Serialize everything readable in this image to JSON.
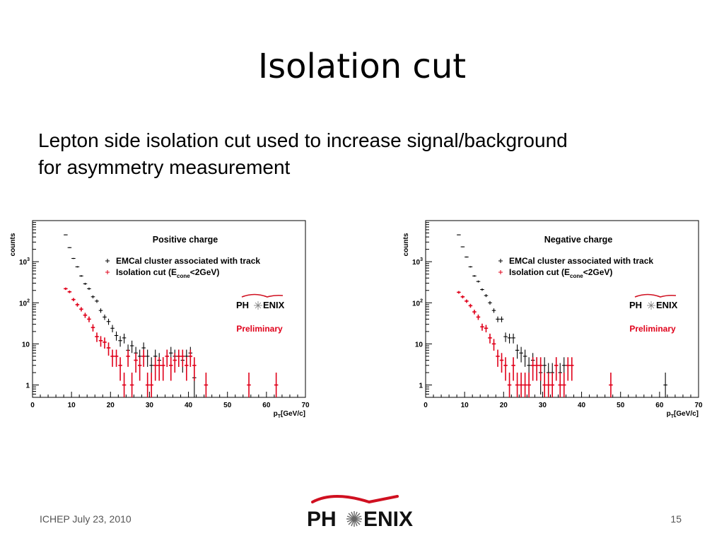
{
  "slide": {
    "title": "Isolation cut",
    "subtitle_line1": "Lepton side isolation cut used to increase signal/background",
    "subtitle_line2": "for asymmetry measurement"
  },
  "footer": {
    "conference": "ICHEP July 23, 2010",
    "page_number": "15",
    "logo_left": "PH",
    "logo_right": "ENIX"
  },
  "chart_data": [
    {
      "type": "scatter",
      "title": "Positive charge",
      "xlabel": "p",
      "xlabel_sub": "T",
      "xlabel_unit": "[GeV/c]",
      "ylabel": "counts",
      "xlim": [
        0,
        70
      ],
      "ylim": [
        0.5,
        10000
      ],
      "yscale": "log",
      "x_ticks": [
        "0",
        "10",
        "20",
        "30",
        "40",
        "50",
        "60",
        "70"
      ],
      "y_ticks": [
        {
          "value": 1,
          "base": "1",
          "exp": ""
        },
        {
          "value": 10,
          "base": "10",
          "exp": ""
        },
        {
          "value": 100,
          "base": "10",
          "exp": "2"
        },
        {
          "value": 1000,
          "base": "10",
          "exp": "3"
        }
      ],
      "legend": {
        "position": "top-right",
        "entry1": "EMCal cluster associated with track",
        "entry2_main": "Isolation cut (E",
        "entry2_sub": "cone",
        "entry2_tail": "<2GeV)"
      },
      "logo_left": "PH",
      "logo_right": "ENIX",
      "preliminary": "Preliminary",
      "colors": {
        "all": "#000000",
        "isolated": "#e0001a",
        "logo_arc": "#d01020"
      },
      "series": [
        {
          "color": "#000000",
          "x": [
            8.5,
            9.5,
            10.5,
            11.5,
            12.5,
            13.5,
            14.5,
            15.5,
            16.5,
            17.5,
            18.5,
            19.5,
            20.5,
            21.5,
            22.5,
            23.5,
            24.5,
            25.5,
            26.5,
            27.5,
            28.5,
            29.5,
            30.5,
            31.5,
            32.5,
            33.5,
            34.5,
            35.5,
            36.5,
            37.5,
            38.5,
            39.5,
            40.5,
            41.5
          ],
          "y": [
            4500,
            2200,
            1200,
            750,
            450,
            290,
            220,
            140,
            110,
            65,
            45,
            35,
            24,
            16,
            12,
            14,
            7,
            9,
            6,
            5,
            8,
            5,
            3,
            5,
            4,
            3,
            5,
            6,
            5,
            5,
            4,
            5,
            6,
            1.5
          ]
        },
        {
          "color": "#e0001a",
          "x": [
            8.5,
            9.5,
            10.5,
            11.5,
            12.5,
            13.5,
            14.5,
            15.5,
            16.5,
            17.5,
            18.5,
            19.5,
            20.5,
            21.5,
            22.5,
            23.5,
            24.5,
            25.5,
            26.5,
            27.5,
            28.5,
            29.5,
            30.5,
            31.5,
            32.5,
            33.5,
            34.5,
            35.5,
            36.5,
            37.5,
            38.5,
            39.5,
            40.5,
            41.5,
            44.5,
            55.5,
            62.5
          ],
          "y": [
            220,
            185,
            120,
            90,
            70,
            50,
            40,
            25,
            15,
            12,
            11,
            8,
            5,
            5,
            3,
            1,
            5,
            1,
            4,
            3,
            5,
            1,
            1,
            3,
            3,
            3,
            5,
            3,
            4,
            5,
            5,
            3,
            5,
            3,
            1,
            1,
            1
          ]
        }
      ]
    },
    {
      "type": "scatter",
      "title": "Negative charge",
      "xlabel": "p",
      "xlabel_sub": "T",
      "xlabel_unit": "[GeV/c]",
      "ylabel": "counts",
      "xlim": [
        0,
        70
      ],
      "ylim": [
        0.5,
        10000
      ],
      "yscale": "log",
      "x_ticks": [
        "0",
        "10",
        "20",
        "30",
        "40",
        "50",
        "60",
        "70"
      ],
      "y_ticks": [
        {
          "value": 1,
          "base": "1",
          "exp": ""
        },
        {
          "value": 10,
          "base": "10",
          "exp": ""
        },
        {
          "value": 100,
          "base": "10",
          "exp": "2"
        },
        {
          "value": 1000,
          "base": "10",
          "exp": "3"
        }
      ],
      "legend": {
        "position": "top-right",
        "entry1": "EMCal cluster associated with track",
        "entry2_main": "Isolation cut (E",
        "entry2_sub": "cone",
        "entry2_tail": "<2GeV)"
      },
      "logo_left": "PH",
      "logo_right": "ENIX",
      "preliminary": "Preliminary",
      "colors": {
        "all": "#000000",
        "isolated": "#e0001a",
        "logo_arc": "#d01020"
      },
      "series": [
        {
          "color": "#000000",
          "x": [
            8.5,
            9.5,
            10.5,
            11.5,
            12.5,
            13.5,
            14.5,
            15.5,
            16.5,
            17.5,
            18.5,
            19.5,
            20.5,
            21.5,
            22.5,
            23.5,
            24.5,
            25.5,
            26.5,
            27.5,
            28.5,
            29.5,
            30.5,
            31.5,
            32.5,
            33.5,
            34.5,
            35.5,
            61.5
          ],
          "y": [
            4500,
            2300,
            1300,
            750,
            450,
            330,
            210,
            150,
            100,
            65,
            40,
            40,
            15,
            14,
            14,
            7,
            6,
            5,
            3,
            4,
            3,
            2,
            3,
            2,
            2,
            3,
            2,
            3,
            1
          ]
        },
        {
          "color": "#e0001a",
          "x": [
            8.5,
            9.5,
            10.5,
            11.5,
            12.5,
            13.5,
            14.5,
            15.5,
            16.5,
            17.5,
            18.5,
            19.5,
            20.5,
            21.5,
            22.5,
            23.5,
            24.5,
            25.5,
            26.5,
            27.5,
            28.5,
            29.5,
            30.5,
            31.5,
            32.5,
            33.5,
            34.5,
            35.5,
            36.5,
            37.5,
            47.5
          ],
          "y": [
            180,
            140,
            110,
            85,
            60,
            45,
            26,
            24,
            14,
            10,
            5,
            4,
            3,
            1,
            3,
            1,
            1,
            1,
            1,
            3,
            3,
            3,
            1,
            1,
            1,
            3,
            1,
            1,
            3,
            3,
            1
          ]
        }
      ]
    }
  ]
}
